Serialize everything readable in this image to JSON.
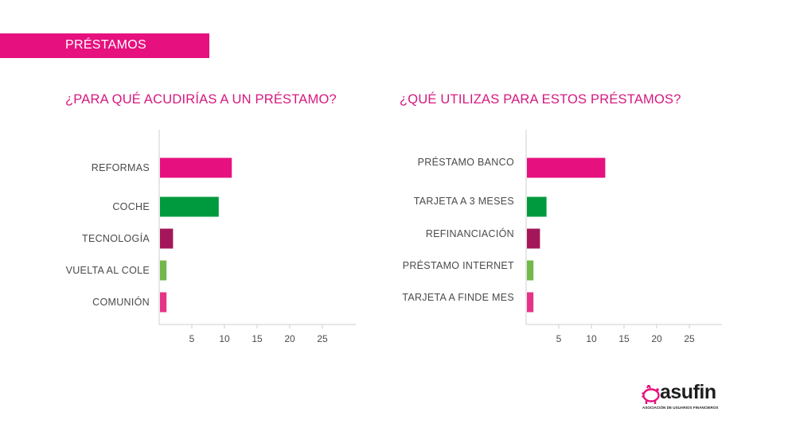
{
  "header": {
    "label": "PRÉSTAMOS",
    "color": "#e6117f"
  },
  "logo": {
    "word": "asufin",
    "tagline": "ASOCIACIÓN DE USUARIOS FINANCIEROS",
    "icon": "piggy-bank-icon",
    "icon_color": "#e6117f"
  },
  "chart_data": [
    {
      "type": "bar",
      "orientation": "horizontal",
      "title": "¿PARA QUÉ ACUDIRÍAS A UN PRÉSTAMO?",
      "categories": [
        "REFORMAS",
        "COCHE",
        "TECNOLOGÍA",
        "VUELTA AL COLE",
        "COMUNIÓN"
      ],
      "values": [
        11,
        9,
        2,
        1,
        1
      ],
      "colors": [
        "#e6117f",
        "#009a3e",
        "#a3175a",
        "#72b84a",
        "#e63388"
      ],
      "xticks": [
        5,
        10,
        15,
        20,
        25
      ],
      "xlim": [
        0,
        30
      ],
      "xlabel": "",
      "ylabel": "",
      "grid": false,
      "legend": "none"
    },
    {
      "type": "bar",
      "orientation": "horizontal",
      "title": "¿QUÉ UTILIZAS PARA ESTOS PRÉSTAMOS?",
      "categories": [
        "PRÉSTAMO BANCO",
        "TARJETA A 3 MESES",
        "REFINANCIACIÓN",
        "PRÉSTAMO INTERNET",
        "TARJETA A FINDE MES"
      ],
      "values": [
        12,
        3,
        2,
        1,
        1
      ],
      "colors": [
        "#e6117f",
        "#009a3e",
        "#a3175a",
        "#72b84a",
        "#e63388"
      ],
      "xticks": [
        5,
        10,
        15,
        20,
        25
      ],
      "xlim": [
        0,
        30
      ],
      "xlabel": "",
      "ylabel": "",
      "grid": false,
      "legend": "none"
    }
  ]
}
